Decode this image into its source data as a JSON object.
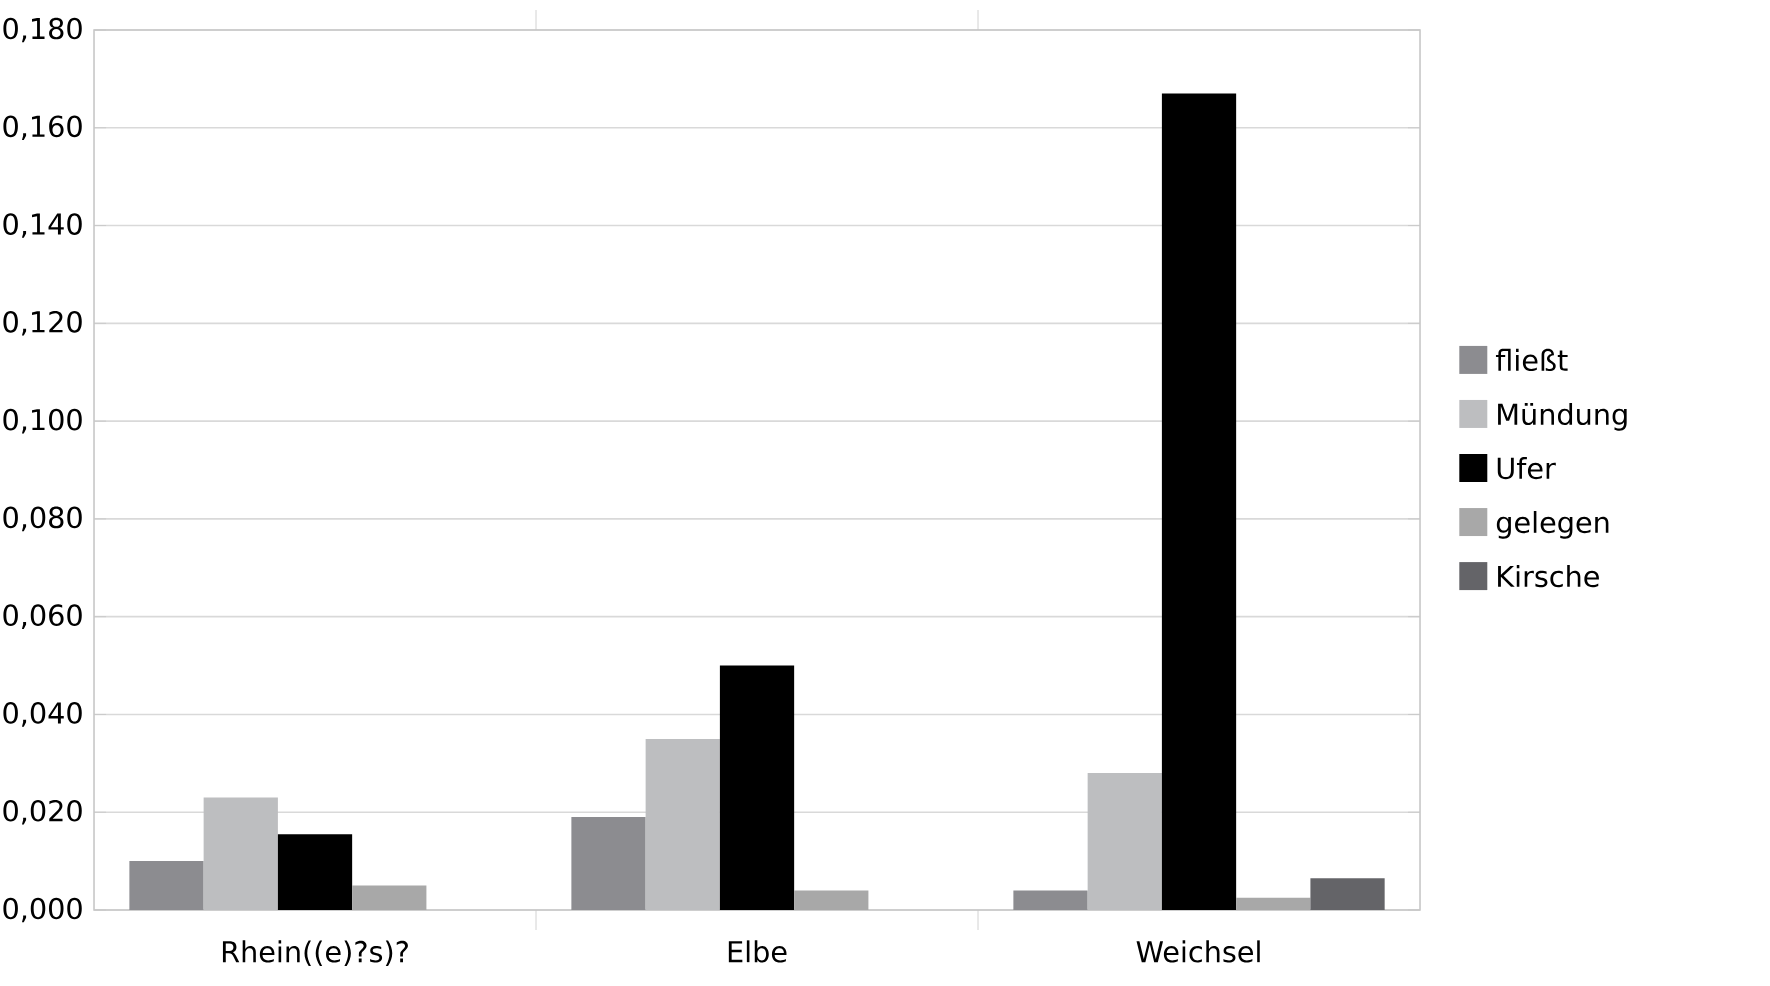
{
  "chart_data": {
    "type": "bar",
    "categories": [
      "Rhein((e)?s)?",
      "Elbe",
      "Weichsel"
    ],
    "series": [
      {
        "name": "fließt",
        "color": "#8c8c90",
        "values": [
          0.01,
          0.019,
          0.004
        ]
      },
      {
        "name": "Mündung",
        "color": "#bdbec0",
        "values": [
          0.023,
          0.035,
          0.028
        ]
      },
      {
        "name": "Ufer",
        "color": "#000000",
        "values": [
          0.0155,
          0.05,
          0.167
        ]
      },
      {
        "name": "gelegen",
        "color": "#a8a8a8",
        "values": [
          0.005,
          0.004,
          0.0025
        ]
      },
      {
        "name": "Kirsche",
        "color": "#646468",
        "values": [
          0,
          0,
          0.0065
        ]
      }
    ],
    "ylim": [
      0,
      0.18
    ],
    "yticks": [
      {
        "value": 0,
        "label": "0,000"
      },
      {
        "value": 0.02,
        "label": "0,020"
      },
      {
        "value": 0.04,
        "label": "0,040"
      },
      {
        "value": 0.06,
        "label": "0,060"
      },
      {
        "value": 0.08,
        "label": "0,080"
      },
      {
        "value": 0.1,
        "label": "0,100"
      },
      {
        "value": 0.12,
        "label": "0,120"
      },
      {
        "value": 0.14,
        "label": "0,140"
      },
      {
        "value": 0.16,
        "label": "0,160"
      },
      {
        "value": 0.18,
        "label": "0,180"
      }
    ],
    "grid": "y",
    "legend": "right"
  }
}
